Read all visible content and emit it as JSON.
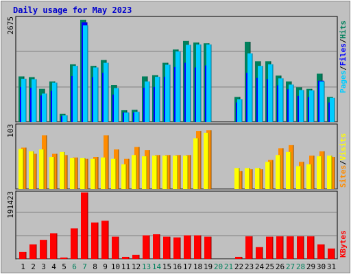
{
  "page": {
    "title": "Daily usage for May 2023"
  },
  "colors": {
    "background": "#c0c0c0",
    "title": "#0000cc",
    "pages": "#00ccff",
    "files": "#0000ff",
    "hits": "#00805c",
    "visits": "#ffff00",
    "sites": "#ff8c00",
    "kbytes": "#ff0000",
    "weekend_day": "#00805c",
    "weekday": "#000000"
  },
  "chart_data": [
    {
      "type": "bar",
      "panel": "hits-files-pages",
      "categories": [
        "1",
        "2",
        "3",
        "4",
        "5",
        "6",
        "7",
        "8",
        "9",
        "10",
        "11",
        "12",
        "13",
        "14",
        "15",
        "16",
        "17",
        "18",
        "19",
        "20",
        "21",
        "22",
        "23",
        "24",
        "25",
        "26",
        "27",
        "28",
        "29",
        "30",
        "31"
      ],
      "weekend_days": [
        "6",
        "7",
        "13",
        "14",
        "20",
        "21",
        "27",
        "28"
      ],
      "y_max_label": "2675",
      "ylim": [
        0,
        2675
      ],
      "axis_labels": [
        "Pages",
        "Files",
        "Hits"
      ],
      "series": [
        {
          "name": "Hits",
          "values": [
            1170,
            1150,
            850,
            1040,
            210,
            1480,
            2625,
            1440,
            1590,
            950,
            300,
            310,
            1170,
            1200,
            1520,
            1860,
            2080,
            2040,
            2020,
            0,
            0,
            640,
            2060,
            1560,
            1560,
            1190,
            1040,
            890,
            850,
            1240,
            640
          ]
        },
        {
          "name": "Files",
          "values": [
            900,
            880,
            680,
            800,
            150,
            1180,
            2560,
            1150,
            1260,
            700,
            240,
            240,
            880,
            900,
            1160,
            1410,
            1520,
            1400,
            1450,
            0,
            0,
            500,
            1260,
            1130,
            1100,
            940,
            840,
            670,
            640,
            1060,
            500
          ]
        },
        {
          "name": "Pages",
          "values": [
            1110,
            1100,
            730,
            1010,
            170,
            1440,
            2480,
            1400,
            1520,
            870,
            240,
            260,
            1040,
            1160,
            1470,
            1810,
            1980,
            1990,
            1990,
            0,
            0,
            580,
            1760,
            1440,
            1480,
            1120,
            960,
            820,
            810,
            1040,
            620
          ]
        }
      ]
    },
    {
      "type": "bar",
      "panel": "visits-sites",
      "categories": [
        "1",
        "2",
        "3",
        "4",
        "5",
        "6",
        "7",
        "8",
        "9",
        "10",
        "11",
        "12",
        "13",
        "14",
        "15",
        "16",
        "17",
        "18",
        "19",
        "20",
        "21",
        "22",
        "23",
        "24",
        "25",
        "26",
        "27",
        "28",
        "29",
        "30",
        "31"
      ],
      "y_max_label": "103",
      "ylim": [
        0,
        103
      ],
      "axis_labels": [
        "Sites",
        "Visits"
      ],
      "series": [
        {
          "name": "Visits",
          "values": [
            65,
            61,
            64,
            52,
            60,
            50,
            50,
            49,
            51,
            49,
            40,
            55,
            53,
            54,
            54,
            54,
            54,
            82,
            91,
            0,
            0,
            34,
            34,
            34,
            44,
            55,
            60,
            37,
            40,
            53,
            54
          ]
        },
        {
          "name": "Sites",
          "values": [
            67,
            57,
            87,
            57,
            55,
            51,
            49,
            52,
            87,
            64,
            49,
            68,
            63,
            55,
            55,
            55,
            55,
            94,
            95,
            0,
            0,
            29,
            32,
            32,
            47,
            66,
            71,
            44,
            54,
            61,
            52
          ]
        }
      ]
    },
    {
      "type": "bar",
      "panel": "kbytes",
      "categories": [
        "1",
        "2",
        "3",
        "4",
        "5",
        "6",
        "7",
        "8",
        "9",
        "10",
        "11",
        "12",
        "13",
        "14",
        "15",
        "16",
        "17",
        "18",
        "19",
        "20",
        "21",
        "22",
        "23",
        "24",
        "25",
        "26",
        "27",
        "28",
        "29",
        "30",
        "31"
      ],
      "y_max_label": "191423",
      "ylim": [
        0,
        191423
      ],
      "axis_labels": [
        "KBytes"
      ],
      "series": [
        {
          "name": "KBytes",
          "values": [
            20000,
            42000,
            55000,
            74000,
            4000,
            88000,
            191423,
            105000,
            110000,
            64000,
            6000,
            12000,
            68000,
            71000,
            64000,
            62000,
            68000,
            68000,
            64000,
            0,
            0,
            6000,
            65000,
            34000,
            64000,
            65000,
            65000,
            65000,
            65000,
            42000,
            30000
          ]
        }
      ]
    }
  ]
}
